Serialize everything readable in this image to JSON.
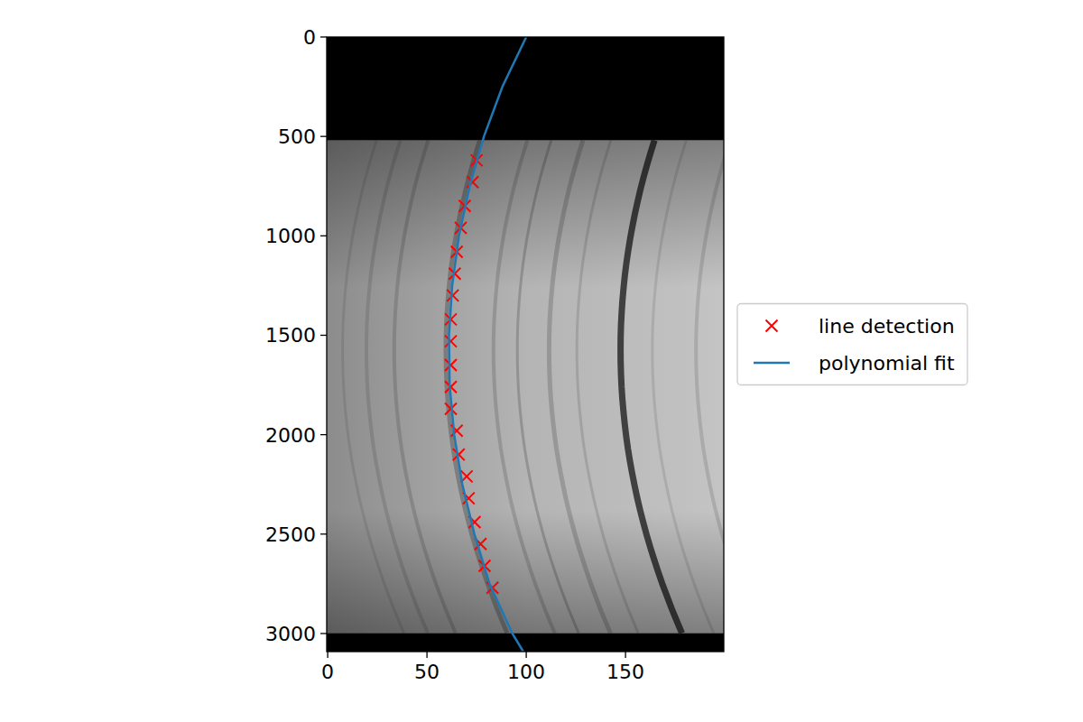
{
  "chart_data": {
    "type": "scatter",
    "xlim": [
      -0.5,
      199.5
    ],
    "ylim": [
      3091,
      0
    ],
    "xticks": [
      0,
      50,
      100,
      150
    ],
    "yticks": [
      0,
      500,
      1000,
      1500,
      2000,
      2500,
      3000
    ],
    "legend": "right",
    "series": [
      {
        "name": "line detection",
        "type": "scatter",
        "color": "#ff0000",
        "marker": "x",
        "x": [
          75,
          73,
          69,
          67,
          65,
          64,
          63,
          62,
          62,
          62,
          62,
          62,
          65,
          66,
          70,
          71,
          74,
          77,
          79,
          83
        ],
        "values": [
          620,
          730,
          850,
          960,
          1080,
          1190,
          1300,
          1420,
          1530,
          1650,
          1760,
          1870,
          1980,
          2100,
          2210,
          2320,
          2440,
          2550,
          2660,
          2770
        ]
      },
      {
        "name": "polynomial fit",
        "type": "line",
        "color": "#1f77b4",
        "line_style": "solid",
        "x": [
          100,
          88,
          78.7,
          71.5,
          66.1,
          62.7,
          61.1,
          61.4,
          63.7,
          67.8,
          73.9,
          81.5,
          93,
          98.5
        ],
        "values": [
          0,
          250,
          500,
          750,
          1000,
          1250,
          1500,
          1750,
          2000,
          2250,
          2500,
          2750,
          3000,
          3091
        ]
      }
    ]
  }
}
